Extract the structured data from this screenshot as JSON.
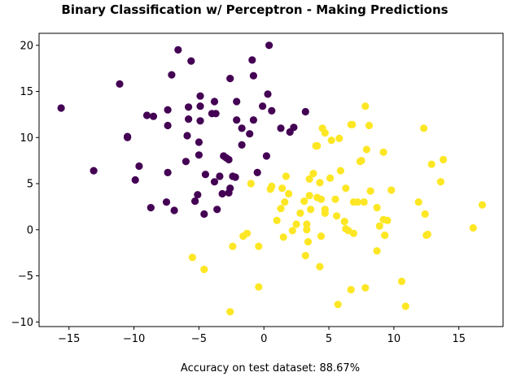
{
  "chart_data": {
    "type": "scatter",
    "title": "Binary Classification w/ Perceptron - Making Predictions",
    "xlabel": "",
    "ylabel": "",
    "xlim": [
      -17.3,
      18.4
    ],
    "ylim": [
      -10.5,
      21.3
    ],
    "x_ticks": [
      -15,
      -10,
      -5,
      0,
      5,
      10,
      15
    ],
    "y_ticks": [
      -10,
      -5,
      0,
      5,
      10,
      15,
      20
    ],
    "grid": false,
    "legend": "none",
    "footnote": "Accuracy on test dataset: 88.67%",
    "series": [
      {
        "color": "#440154",
        "points": [
          [
            -15.6,
            13.2
          ],
          [
            -13.1,
            6.4
          ],
          [
            -11.1,
            15.8
          ],
          [
            -10.5,
            10.0
          ],
          [
            -10.5,
            10.1
          ],
          [
            -9.9,
            5.4
          ],
          [
            -9.6,
            6.9
          ],
          [
            -9.0,
            12.4
          ],
          [
            -8.7,
            2.4
          ],
          [
            -8.5,
            12.3
          ],
          [
            -7.5,
            3.0
          ],
          [
            -7.4,
            6.2
          ],
          [
            -7.4,
            11.3
          ],
          [
            -7.4,
            13.0
          ],
          [
            -7.1,
            16.8
          ],
          [
            -6.9,
            2.1
          ],
          [
            -6.6,
            19.5
          ],
          [
            -6.0,
            7.4
          ],
          [
            -5.9,
            10.2
          ],
          [
            -5.8,
            12.0
          ],
          [
            -5.8,
            13.3
          ],
          [
            -5.6,
            18.3
          ],
          [
            -5.3,
            3.1
          ],
          [
            -5.1,
            3.8
          ],
          [
            -5.0,
            8.1
          ],
          [
            -5.0,
            9.5
          ],
          [
            -4.9,
            11.8
          ],
          [
            -4.9,
            13.4
          ],
          [
            -4.9,
            14.5
          ],
          [
            -4.6,
            1.7
          ],
          [
            -4.5,
            6.0
          ],
          [
            -4.0,
            12.6
          ],
          [
            -3.8,
            5.2
          ],
          [
            -3.8,
            13.9
          ],
          [
            -3.7,
            12.6
          ],
          [
            -3.6,
            2.2
          ],
          [
            -3.4,
            5.8
          ],
          [
            -3.2,
            3.9
          ],
          [
            -3.1,
            8.0
          ],
          [
            -2.9,
            7.8
          ],
          [
            -2.7,
            7.6
          ],
          [
            -2.7,
            4.0
          ],
          [
            -2.6,
            4.5
          ],
          [
            -2.6,
            16.4
          ],
          [
            -2.4,
            5.8
          ],
          [
            -2.2,
            5.7
          ],
          [
            -2.1,
            11.9
          ],
          [
            -2.1,
            13.9
          ],
          [
            -1.7,
            9.2
          ],
          [
            -1.7,
            11.0
          ],
          [
            -1.1,
            10.4
          ],
          [
            -0.9,
            18.4
          ],
          [
            -0.8,
            11.9
          ],
          [
            -0.8,
            16.7
          ],
          [
            -0.5,
            6.2
          ],
          [
            -0.1,
            13.4
          ],
          [
            0.2,
            8.0
          ],
          [
            0.3,
            14.7
          ],
          [
            0.4,
            20.0
          ],
          [
            0.6,
            12.9
          ],
          [
            1.3,
            11.0
          ],
          [
            2.0,
            10.6
          ],
          [
            2.3,
            11.1
          ],
          [
            3.2,
            12.8
          ]
        ]
      },
      {
        "color": "#fde725",
        "points": [
          [
            -5.5,
            -3.0
          ],
          [
            -4.6,
            -4.3
          ],
          [
            -2.6,
            -8.9
          ],
          [
            -2.4,
            -1.8
          ],
          [
            -1.6,
            -0.7
          ],
          [
            -1.3,
            -0.4
          ],
          [
            -1.0,
            5.0
          ],
          [
            -0.4,
            -1.8
          ],
          [
            -0.4,
            -6.2
          ],
          [
            0.5,
            4.4
          ],
          [
            0.6,
            4.7
          ],
          [
            1.0,
            1.0
          ],
          [
            1.3,
            2.3
          ],
          [
            1.4,
            4.5
          ],
          [
            1.5,
            -0.8
          ],
          [
            1.6,
            3.0
          ],
          [
            1.7,
            5.8
          ],
          [
            1.9,
            3.9
          ],
          [
            2.2,
            -0.1
          ],
          [
            2.5,
            0.6
          ],
          [
            2.8,
            1.8
          ],
          [
            3.1,
            3.1
          ],
          [
            3.2,
            -2.8
          ],
          [
            3.3,
            0.6
          ],
          [
            3.3,
            0.0
          ],
          [
            3.4,
            -1.3
          ],
          [
            3.5,
            3.7
          ],
          [
            3.5,
            5.5
          ],
          [
            3.6,
            2.2
          ],
          [
            3.8,
            6.1
          ],
          [
            4.0,
            9.1
          ],
          [
            4.1,
            3.5
          ],
          [
            4.1,
            9.1
          ],
          [
            4.3,
            -4.0
          ],
          [
            4.3,
            5.1
          ],
          [
            4.4,
            -0.7
          ],
          [
            4.4,
            3.3
          ],
          [
            4.5,
            11.0
          ],
          [
            4.7,
            2.2
          ],
          [
            4.7,
            10.5
          ],
          [
            4.7,
            1.8
          ],
          [
            5.1,
            5.6
          ],
          [
            5.2,
            9.7
          ],
          [
            5.5,
            3.3
          ],
          [
            5.6,
            1.5
          ],
          [
            5.7,
            -8.1
          ],
          [
            5.8,
            9.9
          ],
          [
            5.9,
            6.4
          ],
          [
            6.2,
            0.9
          ],
          [
            6.3,
            4.5
          ],
          [
            6.3,
            0.1
          ],
          [
            6.5,
            -0.1
          ],
          [
            6.7,
            -6.5
          ],
          [
            6.7,
            11.4
          ],
          [
            6.8,
            11.4
          ],
          [
            6.9,
            3.0
          ],
          [
            6.9,
            -0.4
          ],
          [
            7.2,
            3.0
          ],
          [
            7.4,
            7.4
          ],
          [
            7.5,
            7.5
          ],
          [
            7.7,
            3.0
          ],
          [
            7.8,
            13.4
          ],
          [
            7.8,
            -6.3
          ],
          [
            7.9,
            8.7
          ],
          [
            8.1,
            11.3
          ],
          [
            8.2,
            4.2
          ],
          [
            8.7,
            2.4
          ],
          [
            8.7,
            -2.3
          ],
          [
            8.9,
            0.4
          ],
          [
            9.2,
            8.4
          ],
          [
            9.2,
            1.1
          ],
          [
            9.3,
            -0.6
          ],
          [
            9.5,
            1.0
          ],
          [
            9.8,
            4.3
          ],
          [
            10.6,
            -5.6
          ],
          [
            10.9,
            -8.3
          ],
          [
            11.9,
            3.0
          ],
          [
            12.3,
            11.0
          ],
          [
            12.4,
            1.7
          ],
          [
            12.5,
            -0.6
          ],
          [
            12.6,
            -0.5
          ],
          [
            12.9,
            7.1
          ],
          [
            13.6,
            5.2
          ],
          [
            13.8,
            7.6
          ],
          [
            16.1,
            0.2
          ],
          [
            16.8,
            2.7
          ]
        ]
      }
    ]
  }
}
